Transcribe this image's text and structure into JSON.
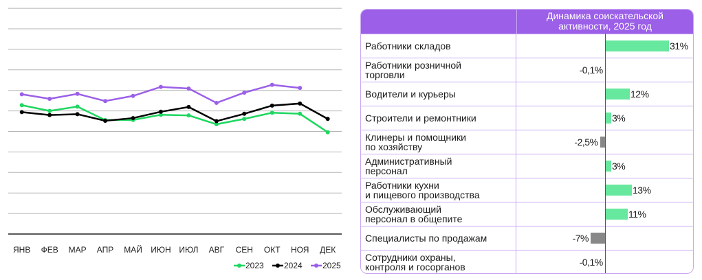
{
  "chart_data": [
    {
      "type": "line",
      "categories": [
        "ЯНВ",
        "ФЕВ",
        "МАР",
        "АПР",
        "МАЙ",
        "ИЮН",
        "ИЮЛ",
        "АВГ",
        "СЕН",
        "ОКТ",
        "НОЯ",
        "ДЕК"
      ],
      "series": [
        {
          "name": "2023",
          "color": "#1ed760",
          "values": [
            6.28,
            6.0,
            6.21,
            5.55,
            5.56,
            5.81,
            5.78,
            5.35,
            5.61,
            5.91,
            5.86,
            4.96
          ]
        },
        {
          "name": "2024",
          "color": "#000000",
          "values": [
            5.94,
            5.8,
            5.84,
            5.52,
            5.65,
            5.96,
            6.19,
            5.5,
            5.86,
            6.26,
            6.36,
            5.61
          ]
        },
        {
          "name": "2025",
          "color": "#9b5fe8",
          "values": [
            6.81,
            6.59,
            6.83,
            6.48,
            6.73,
            7.17,
            7.09,
            6.39,
            6.89,
            7.27,
            7.12,
            null
          ]
        }
      ],
      "ylim": [
        0,
        11
      ],
      "grid": true,
      "y_tick_labels": false,
      "legend": "bottom-right"
    },
    {
      "type": "bar",
      "orientation": "horizontal",
      "title": "Динамика соискательской\nактивности, 2025 год",
      "categories": [
        "Работники складов",
        "Работники розничной\nторговли",
        "Водители и курьеры",
        "Строители и ремонтники",
        "Клинеры и помощники\nпо хозяйству",
        "Административный\nперсонал",
        "Работники кухни\nи пищевого производства",
        "Обслуживающий\nперсонал в общепите",
        "Специалисты по продажам",
        "Сотрудники охраны,\nконтроля и госорганов"
      ],
      "values": [
        31,
        -0.1,
        12,
        3,
        -2.5,
        3,
        13,
        11,
        -7,
        -0.1
      ],
      "labels": [
        "31%",
        "-0,1%",
        "12%",
        "3%",
        "-2,5%",
        "3%",
        "13%",
        "11%",
        "-7%",
        "-0,1%"
      ],
      "colors": {
        "positive": "#66e89e",
        "negative": "#888888",
        "header": "#9b5fe8",
        "border": "#c9a8f2"
      }
    }
  ]
}
